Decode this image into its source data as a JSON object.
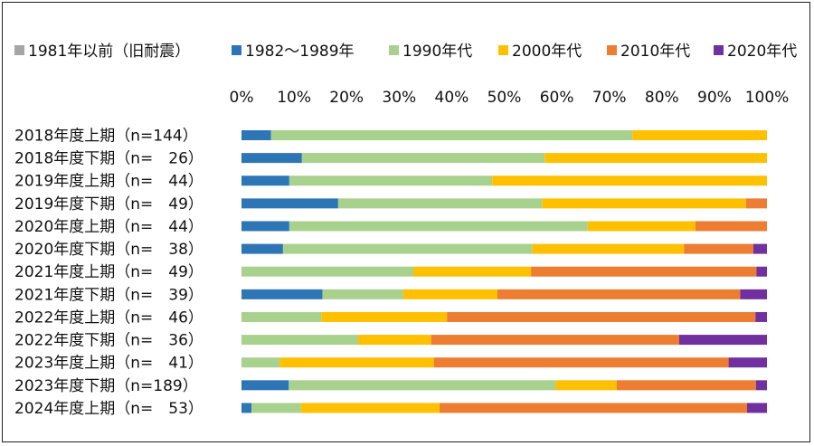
{
  "chart_data": {
    "type": "bar",
    "orientation": "horizontal",
    "stacked": "percent",
    "categories": [
      "2018年度上期（n=144）",
      "2018年度下期（n=　26）",
      "2019年度上期（n=　44）",
      "2019年度下期（n=　49）",
      "2020年度上期（n=　44）",
      "2020年度下期（n=　38）",
      "2021年度上期（n=　49）",
      "2021年度下期（n=　39）",
      "2022年度上期（n=　46）",
      "2022年度下期（n=　36）",
      "2023年度上期（n=　41）",
      "2023年度下期（n=189）",
      "2024年度上期（n=　53）"
    ],
    "series": [
      {
        "name": "1981年以前（旧耐震）",
        "color": "#a5a5a5",
        "values": [
          0,
          0,
          0,
          0,
          0,
          0,
          0,
          0,
          0,
          0,
          0,
          0,
          0
        ]
      },
      {
        "name": "1982～1989年",
        "color": "#2e75b6",
        "values": [
          5.6,
          11.5,
          9.1,
          18.4,
          9.1,
          7.9,
          0,
          15.4,
          0,
          0,
          0,
          9.0,
          1.9
        ]
      },
      {
        "name": "1990年代",
        "color": "#a9d18e",
        "values": [
          68.8,
          46.2,
          38.6,
          38.8,
          56.8,
          47.4,
          32.7,
          15.4,
          15.2,
          22.2,
          7.3,
          50.8,
          9.4
        ]
      },
      {
        "name": "2000年代",
        "color": "#ffc000",
        "values": [
          25.6,
          42.3,
          52.3,
          38.8,
          20.5,
          28.9,
          22.4,
          17.9,
          23.9,
          13.9,
          29.3,
          11.6,
          26.4
        ]
      },
      {
        "name": "2010年代",
        "color": "#ed7d31",
        "values": [
          0,
          0,
          0,
          4.0,
          13.6,
          13.2,
          42.9,
          46.2,
          58.7,
          47.2,
          56.1,
          26.5,
          58.5
        ]
      },
      {
        "name": "2020年代",
        "color": "#7030a0",
        "values": [
          0,
          0,
          0,
          0,
          0,
          2.6,
          2.0,
          5.1,
          2.2,
          16.7,
          7.3,
          2.1,
          3.8
        ]
      }
    ],
    "xlim": [
      0,
      100
    ],
    "xticks": [
      "0%",
      "10%",
      "20%",
      "30%",
      "40%",
      "50%",
      "60%",
      "70%",
      "80%",
      "90%",
      "100%"
    ],
    "legend_position": "top",
    "grid": false
  }
}
